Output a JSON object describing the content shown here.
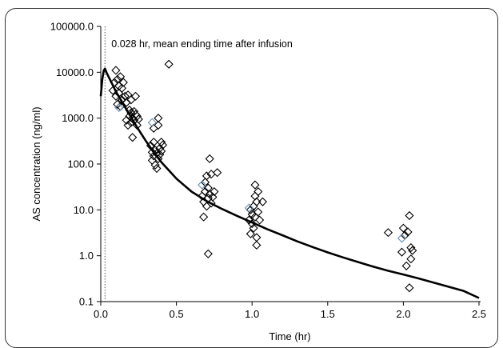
{
  "chart_data": {
    "type": "scatter",
    "xlabel": "Time (hr)",
    "ylabel": "AS concentration (ng/ml)",
    "xlim": [
      0,
      2.5
    ],
    "ylim": [
      0.1,
      100000
    ],
    "yscale": "log",
    "x_ticks": [
      "0.0",
      "0.5",
      "1.0",
      "1.5",
      "2.0",
      "2.5"
    ],
    "y_ticks": [
      "0.1",
      "1.0",
      "10.0",
      "100.0",
      "1000.0",
      "10000.0",
      "100000.0"
    ],
    "annotation": {
      "text": "0.028 hr, mean ending time after infusion",
      "x": 0.028
    },
    "colors": {
      "points": "#000000",
      "highlight_points": "#6a8fb5",
      "curve": "#000000",
      "vline": "#555555"
    },
    "curve": {
      "x": [
        0.0,
        0.01,
        0.02,
        0.028,
        0.04,
        0.06,
        0.08,
        0.1,
        0.15,
        0.2,
        0.25,
        0.3,
        0.35,
        0.4,
        0.5,
        0.6,
        0.7,
        0.8,
        0.9,
        1.0,
        1.1,
        1.2,
        1.3,
        1.4,
        1.5,
        1.6,
        1.7,
        1.8,
        1.9,
        2.0,
        2.1,
        2.2,
        2.3,
        2.4,
        2.5
      ],
      "y": [
        3000,
        7000,
        11000,
        12000,
        9500,
        7000,
        5200,
        3800,
        2000,
        1050,
        560,
        310,
        180,
        110,
        48,
        25,
        15.5,
        10.5,
        7.4,
        5.3,
        3.8,
        2.8,
        2.05,
        1.55,
        1.18,
        0.92,
        0.73,
        0.58,
        0.47,
        0.39,
        0.32,
        0.26,
        0.21,
        0.17,
        0.12
      ]
    },
    "points": [
      {
        "x": 0.08,
        "y": 4000
      },
      {
        "x": 0.09,
        "y": 6000
      },
      {
        "x": 0.1,
        "y": 11000
      },
      {
        "x": 0.1,
        "y": 3000
      },
      {
        "x": 0.11,
        "y": 7000
      },
      {
        "x": 0.11,
        "y": 2000
      },
      {
        "x": 0.12,
        "y": 5000
      },
      {
        "x": 0.12,
        "y": 3500
      },
      {
        "x": 0.13,
        "y": 8000
      },
      {
        "x": 0.13,
        "y": 1800
      },
      {
        "x": 0.14,
        "y": 4500
      },
      {
        "x": 0.14,
        "y": 2500
      },
      {
        "x": 0.15,
        "y": 6000
      },
      {
        "x": 0.16,
        "y": 3000
      },
      {
        "x": 0.17,
        "y": 2200
      },
      {
        "x": 0.17,
        "y": 900
      },
      {
        "x": 0.18,
        "y": 3200
      },
      {
        "x": 0.18,
        "y": 700
      },
      {
        "x": 0.19,
        "y": 1500
      },
      {
        "x": 0.19,
        "y": 1100
      },
      {
        "x": 0.2,
        "y": 2500
      },
      {
        "x": 0.2,
        "y": 800
      },
      {
        "x": 0.2,
        "y": 1300
      },
      {
        "x": 0.21,
        "y": 1000
      },
      {
        "x": 0.21,
        "y": 380
      },
      {
        "x": 0.22,
        "y": 1400
      },
      {
        "x": 0.22,
        "y": 900
      },
      {
        "x": 0.23,
        "y": 1200
      },
      {
        "x": 0.23,
        "y": 3000
      },
      {
        "x": 0.24,
        "y": 700
      },
      {
        "x": 0.24,
        "y": 1100
      },
      {
        "x": 0.25,
        "y": 950
      },
      {
        "x": 0.33,
        "y": 250
      },
      {
        "x": 0.34,
        "y": 180
      },
      {
        "x": 0.34,
        "y": 120
      },
      {
        "x": 0.35,
        "y": 300
      },
      {
        "x": 0.35,
        "y": 150
      },
      {
        "x": 0.35,
        "y": 600
      },
      {
        "x": 0.36,
        "y": 200
      },
      {
        "x": 0.36,
        "y": 95
      },
      {
        "x": 0.37,
        "y": 80
      },
      {
        "x": 0.37,
        "y": 170
      },
      {
        "x": 0.38,
        "y": 1000
      },
      {
        "x": 0.38,
        "y": 130
      },
      {
        "x": 0.38,
        "y": 700
      },
      {
        "x": 0.39,
        "y": 220
      },
      {
        "x": 0.39,
        "y": 160
      },
      {
        "x": 0.4,
        "y": 300
      },
      {
        "x": 0.4,
        "y": 190
      },
      {
        "x": 0.41,
        "y": 260
      },
      {
        "x": 0.45,
        "y": 15000
      },
      {
        "x": 0.67,
        "y": 20
      },
      {
        "x": 0.68,
        "y": 15
      },
      {
        "x": 0.68,
        "y": 7
      },
      {
        "x": 0.69,
        "y": 40
      },
      {
        "x": 0.69,
        "y": 25
      },
      {
        "x": 0.7,
        "y": 12
      },
      {
        "x": 0.7,
        "y": 55
      },
      {
        "x": 0.71,
        "y": 30
      },
      {
        "x": 0.71,
        "y": 18
      },
      {
        "x": 0.71,
        "y": 1.1
      },
      {
        "x": 0.72,
        "y": 22
      },
      {
        "x": 0.72,
        "y": 130
      },
      {
        "x": 0.73,
        "y": 14
      },
      {
        "x": 0.73,
        "y": 60
      },
      {
        "x": 0.74,
        "y": 19
      },
      {
        "x": 0.75,
        "y": 25
      },
      {
        "x": 0.77,
        "y": 65
      },
      {
        "x": 0.98,
        "y": 6
      },
      {
        "x": 0.99,
        "y": 10
      },
      {
        "x": 0.99,
        "y": 3
      },
      {
        "x": 1.0,
        "y": 8
      },
      {
        "x": 1.0,
        "y": 5
      },
      {
        "x": 1.01,
        "y": 4
      },
      {
        "x": 1.01,
        "y": 12
      },
      {
        "x": 1.02,
        "y": 7
      },
      {
        "x": 1.02,
        "y": 20
      },
      {
        "x": 1.02,
        "y": 35
      },
      {
        "x": 1.03,
        "y": 2.5
      },
      {
        "x": 1.03,
        "y": 1.7
      },
      {
        "x": 1.03,
        "y": 15
      },
      {
        "x": 1.04,
        "y": 25
      },
      {
        "x": 1.04,
        "y": 9
      },
      {
        "x": 1.05,
        "y": 6
      },
      {
        "x": 1.07,
        "y": 15
      },
      {
        "x": 1.9,
        "y": 3.2
      },
      {
        "x": 1.99,
        "y": 1.2
      },
      {
        "x": 2.0,
        "y": 4
      },
      {
        "x": 2.01,
        "y": 2.8
      },
      {
        "x": 2.02,
        "y": 0.6
      },
      {
        "x": 2.03,
        "y": 3.3
      },
      {
        "x": 2.04,
        "y": 7.5
      },
      {
        "x": 2.04,
        "y": 0.2
      },
      {
        "x": 2.05,
        "y": 1.5
      },
      {
        "x": 2.05,
        "y": 0.85
      },
      {
        "x": 2.06,
        "y": 1.3
      }
    ],
    "highlight_points": [
      {
        "x": 0.12,
        "y": 1700
      },
      {
        "x": 0.34,
        "y": 800
      },
      {
        "x": 0.67,
        "y": 35
      },
      {
        "x": 0.98,
        "y": 11
      },
      {
        "x": 1.99,
        "y": 2.4
      }
    ]
  }
}
